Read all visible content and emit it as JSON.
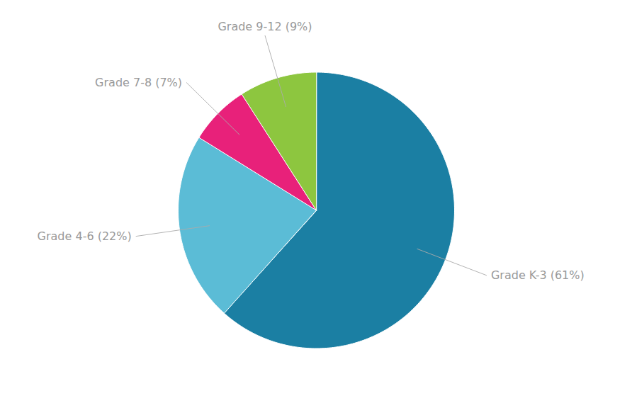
{
  "chart_data": {
    "type": "pie",
    "categories": [
      "Grade K-3 (61%)",
      "Grade 4-6 (22%)",
      "Grade 7-8 (7%)",
      "Grade 9-12 (9%)"
    ],
    "values": [
      61,
      22,
      7,
      9
    ],
    "colors": [
      "#1b7fa3",
      "#5bbcd6",
      "#e8217a",
      "#8dc63f"
    ]
  }
}
